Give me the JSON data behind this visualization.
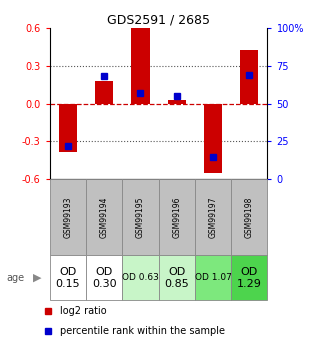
{
  "title": "GDS2591 / 2685",
  "samples": [
    "GSM99193",
    "GSM99194",
    "GSM99195",
    "GSM99196",
    "GSM99197",
    "GSM99198"
  ],
  "log2_ratio": [
    -0.38,
    0.18,
    0.6,
    0.03,
    -0.55,
    0.42
  ],
  "percentile_rank": [
    22,
    68,
    57,
    55,
    15,
    69
  ],
  "age_labels": [
    "OD\n0.15",
    "OD\n0.30",
    "OD 0.63",
    "OD\n0.85",
    "OD 1.07",
    "OD\n1.29"
  ],
  "age_colors": [
    "#ffffff",
    "#ffffff",
    "#c8f5c8",
    "#c8f5c8",
    "#7de87d",
    "#4dd44d"
  ],
  "age_fontsizes": [
    8,
    8,
    6.5,
    8,
    6.5,
    8
  ],
  "ylim": [
    -0.6,
    0.6
  ],
  "yticks_left": [
    -0.6,
    -0.3,
    0.0,
    0.3,
    0.6
  ],
  "yticks_right_vals": [
    -0.6,
    -0.3,
    0.0,
    0.3,
    0.6
  ],
  "yticks_right_labels": [
    "0",
    "25",
    "50",
    "75",
    "100%"
  ],
  "bar_color": "#cc0000",
  "dot_color": "#0000cc",
  "zero_line_color": "#cc0000",
  "dotted_color": "#555555",
  "background_color": "#ffffff",
  "header_bg": "#c0c0c0",
  "bar_width": 0.5
}
